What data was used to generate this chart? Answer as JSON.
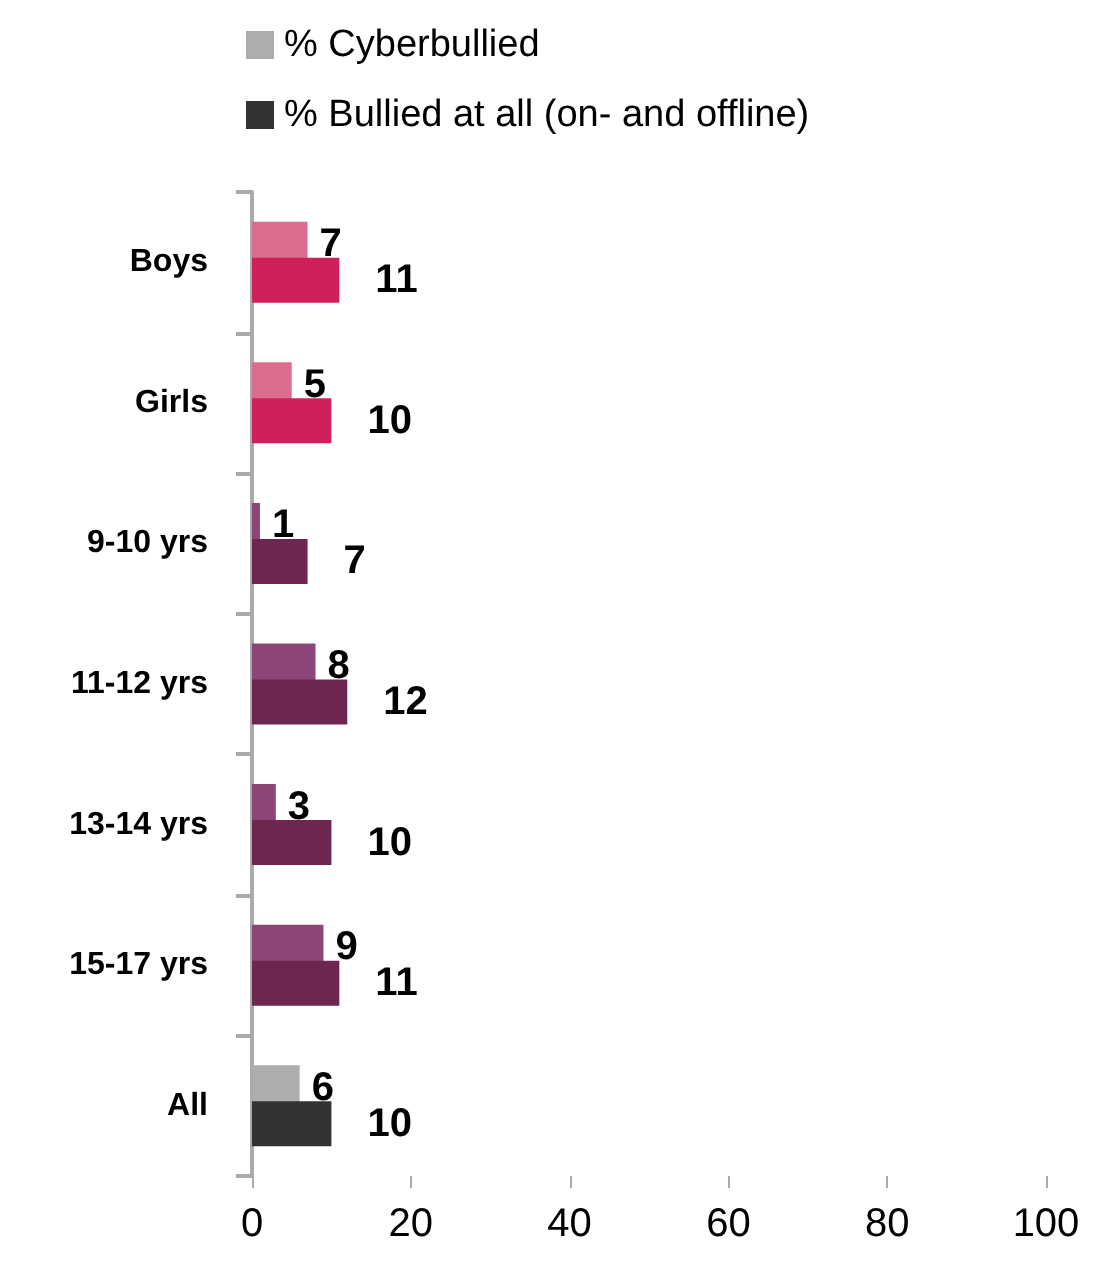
{
  "chart_data": {
    "type": "bar",
    "orientation": "horizontal",
    "categories": [
      "Boys",
      "Girls",
      "9-10 yrs",
      "11-12 yrs",
      "13-14 yrs",
      "15-17 yrs",
      "All"
    ],
    "series": [
      {
        "name": "% Cyberbullied",
        "color": "#adadad",
        "colors": [
          "#dc6b8e",
          "#dc6b8e",
          "#8b4577",
          "#8b4577",
          "#8b4577",
          "#8b4577",
          "#adadad"
        ],
        "values": [
          7,
          5,
          1,
          8,
          3,
          9,
          6
        ]
      },
      {
        "name": "% Bullied at all (on- and offline)",
        "color": "#333333",
        "colors": [
          "#cf2059",
          "#cf2059",
          "#6c264f",
          "#6c264f",
          "#6c264f",
          "#6c264f",
          "#333333"
        ],
        "values": [
          11,
          10,
          7,
          12,
          10,
          11,
          10
        ]
      }
    ],
    "xlim": [
      0,
      100
    ],
    "xticks": [
      0,
      20,
      40,
      60,
      80,
      100
    ],
    "data_labels": true,
    "legend": "top",
    "grid": false
  }
}
